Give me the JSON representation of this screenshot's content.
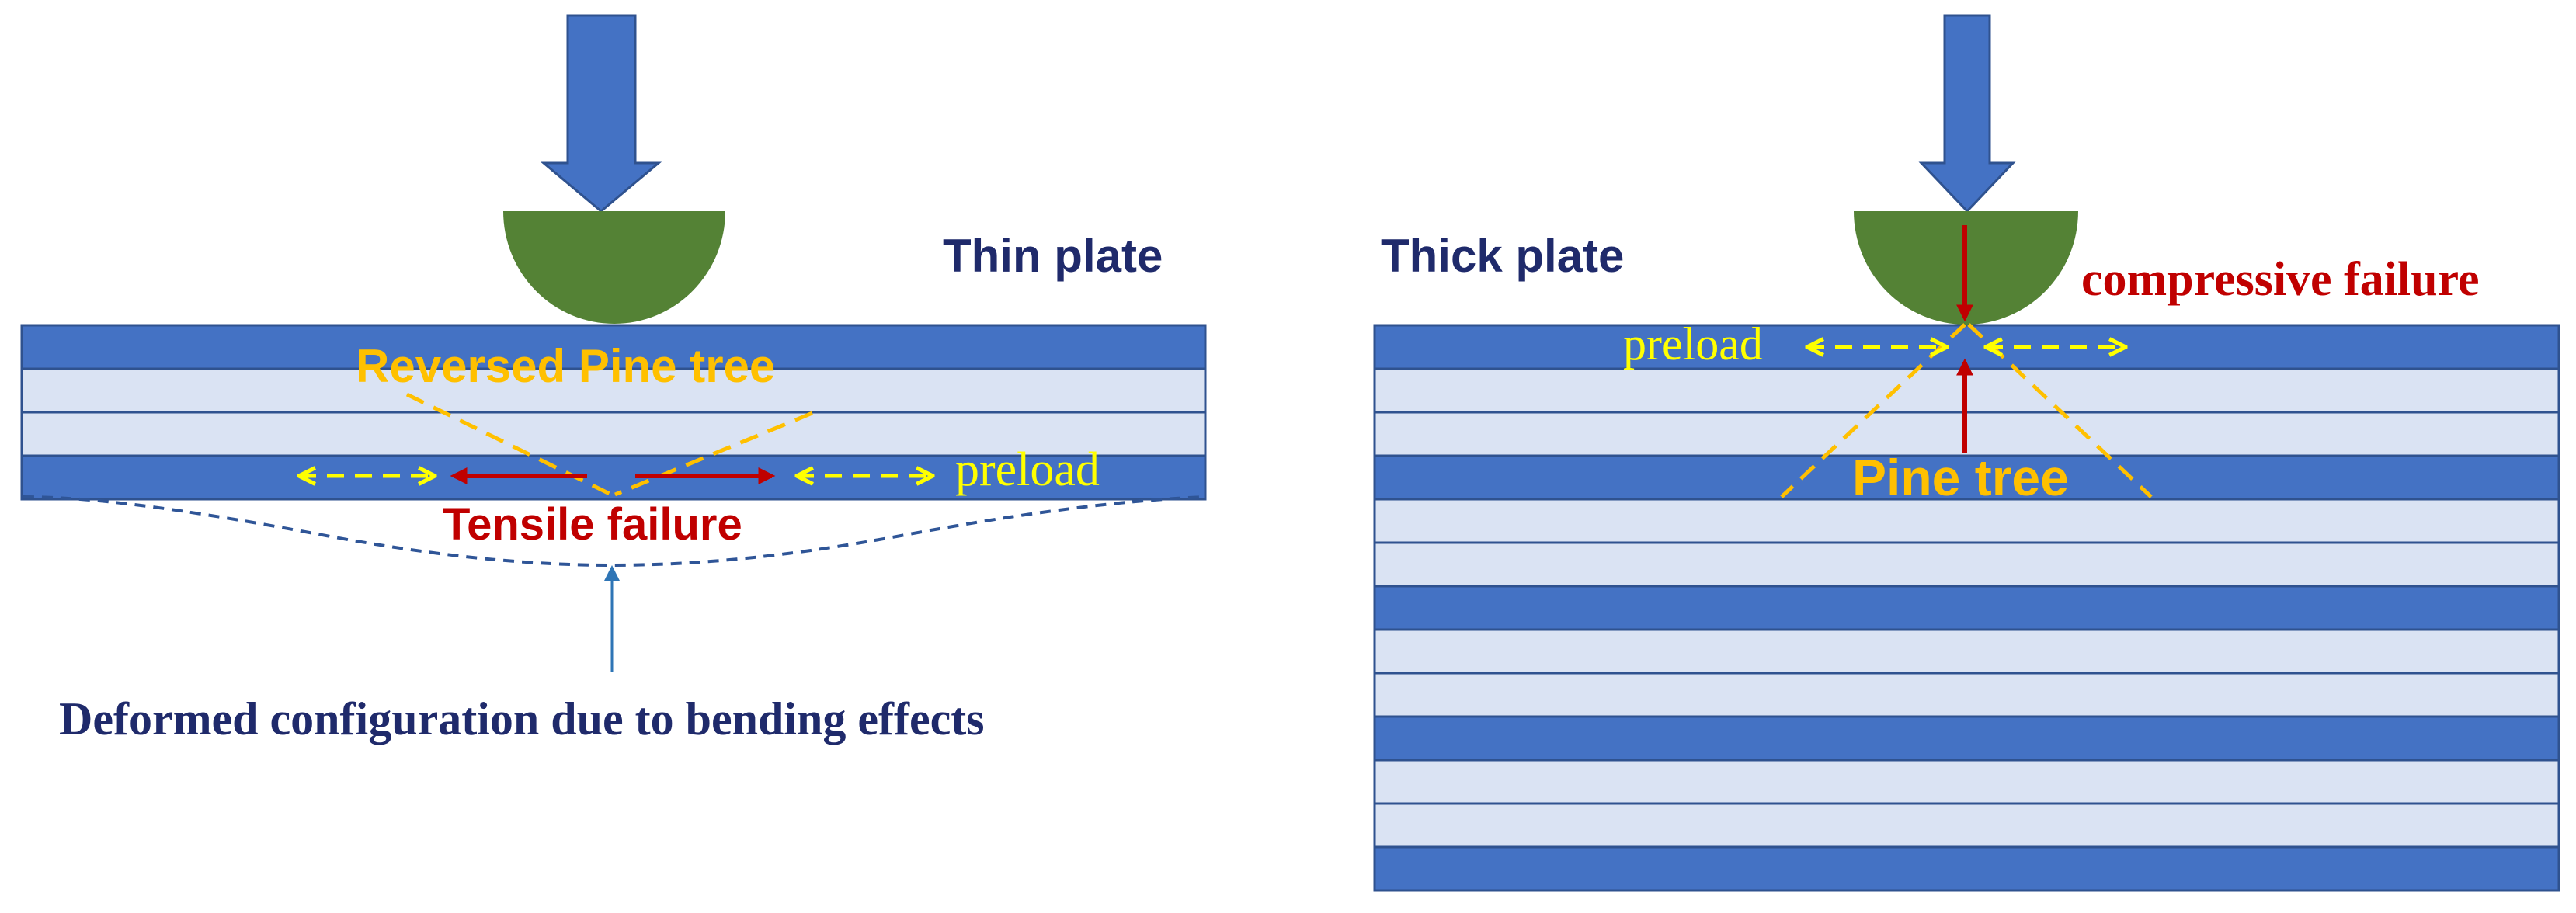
{
  "labels": {
    "thin_plate": "Thin plate",
    "thick_plate": "Thick plate",
    "reversed_pine_tree": "Reversed Pine tree",
    "tensile_failure": "Tensile failure",
    "preload_thin": "preload",
    "deformed_configuration": "Deformed configuration due to bending effects",
    "compressive_failure": "compressive failure",
    "preload_thick": "preload",
    "pine_tree": "Pine tree"
  },
  "thin_plate": {
    "layers": [
      "dark",
      "light",
      "light",
      "dark"
    ]
  },
  "thick_plate": {
    "layers": [
      "dark",
      "light",
      "light",
      "dark",
      "light",
      "light",
      "dark",
      "light",
      "light",
      "dark",
      "light",
      "light",
      "dark"
    ]
  },
  "colors": {
    "ply_dark": "#4472c4",
    "ply_light": "#dae3f3",
    "ply_border": "#2f528f",
    "load_arrow": "#4472c4",
    "indenter": "#548235",
    "pine_tree": "#ffc000",
    "preload": "#ffff00",
    "failure": "#c00000",
    "navy_text": "#1f2a6b",
    "deformed_line": "#2f5597",
    "pointer_arrow": "#2e75b6"
  }
}
